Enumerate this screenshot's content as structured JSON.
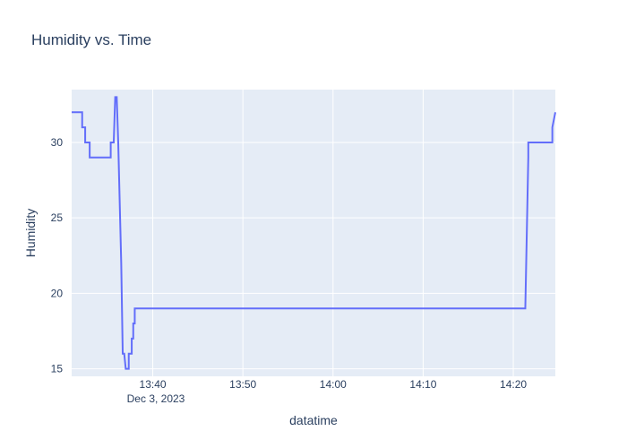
{
  "chart_data": {
    "type": "line",
    "title": "Humidity vs. Time",
    "xlabel": "datatime",
    "ylabel": "Humidity",
    "date_label": "Dec 3, 2023",
    "x_tick_labels": [
      "13:40",
      "13:50",
      "14:00",
      "14:10",
      "14:20"
    ],
    "y_tick_labels": [
      "15",
      "20",
      "25",
      "30"
    ],
    "y_ticks": [
      15,
      20,
      25,
      30
    ],
    "ylim": [
      14.5,
      33.5
    ],
    "xlim": [
      "13:31:00",
      "14:24:40"
    ],
    "grid": true,
    "colors": {
      "plot_background": "#e5ecf6",
      "gridline": "#ffffff",
      "line": "#636efa",
      "text": "#2a3f5f"
    },
    "series": [
      {
        "x": [
          "13:31:00",
          "13:32:10",
          "13:32:10",
          "13:32:30",
          "13:32:30",
          "13:33:00",
          "13:33:00",
          "13:35:20",
          "13:35:20",
          "13:35:40",
          "13:35:50",
          "13:36:00",
          "13:36:10",
          "13:36:30",
          "13:36:40",
          "13:36:50",
          "13:37:00",
          "13:37:20",
          "13:37:20",
          "13:37:40",
          "13:37:40",
          "13:37:50",
          "13:37:50",
          "13:38:00",
          "13:38:00",
          "13:38:20",
          "13:38:20",
          "14:21:20",
          "14:21:40",
          "14:21:40",
          "14:24:20",
          "14:24:20",
          "14:24:40"
        ],
        "y": [
          32,
          32,
          31,
          31,
          30,
          30,
          29,
          29,
          30,
          30,
          33,
          33,
          30,
          22,
          16,
          16,
          15,
          15,
          16,
          16,
          17,
          17,
          18,
          18,
          19,
          19,
          19,
          19,
          29,
          30,
          30,
          31,
          32
        ]
      }
    ]
  }
}
